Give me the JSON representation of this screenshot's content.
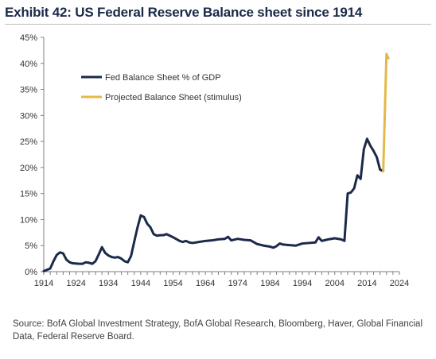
{
  "header": {
    "title": "Exhibit 42: US Federal Reserve Balance sheet since 1914"
  },
  "footer": {
    "source": "Source: BofA Global Investment Strategy, BofA Global Research, Bloomberg, Haver, Global Financial Data, Federal Reserve Board."
  },
  "chart_data": {
    "type": "line",
    "title": "Exhibit 42: US Federal Reserve Balance sheet since 1914",
    "xlabel": "",
    "ylabel": "",
    "xlim": [
      1914,
      2024
    ],
    "ylim": [
      0,
      45
    ],
    "x_ticks": [
      1914,
      1924,
      1934,
      1944,
      1954,
      1964,
      1974,
      1984,
      1994,
      2004,
      2014,
      2024
    ],
    "y_ticks": [
      0,
      5,
      10,
      15,
      20,
      25,
      30,
      35,
      40,
      45
    ],
    "y_tick_labels": [
      "0%",
      "5%",
      "10%",
      "15%",
      "20%",
      "25%",
      "30%",
      "35%",
      "40%",
      "45%"
    ],
    "grid": false,
    "legend": "top-left",
    "series": [
      {
        "name": "Fed Balance Sheet % of GDP",
        "color": "#1b2a4a",
        "points": [
          [
            1914,
            0.1
          ],
          [
            1916,
            0.6
          ],
          [
            1917,
            2.0
          ],
          [
            1918,
            3.2
          ],
          [
            1919,
            3.7
          ],
          [
            1920,
            3.5
          ],
          [
            1921,
            2.3
          ],
          [
            1922,
            1.8
          ],
          [
            1923,
            1.6
          ],
          [
            1925,
            1.5
          ],
          [
            1926,
            1.5
          ],
          [
            1927,
            1.8
          ],
          [
            1928,
            1.7
          ],
          [
            1929,
            1.5
          ],
          [
            1930,
            2.0
          ],
          [
            1931,
            3.3
          ],
          [
            1932,
            4.7
          ],
          [
            1933,
            3.6
          ],
          [
            1934,
            3.1
          ],
          [
            1935,
            2.8
          ],
          [
            1936,
            2.7
          ],
          [
            1937,
            2.8
          ],
          [
            1938,
            2.5
          ],
          [
            1939,
            2.0
          ],
          [
            1940,
            1.8
          ],
          [
            1941,
            3.0
          ],
          [
            1942,
            5.8
          ],
          [
            1943,
            8.5
          ],
          [
            1944,
            10.8
          ],
          [
            1945,
            10.5
          ],
          [
            1946,
            9.2
          ],
          [
            1947,
            8.5
          ],
          [
            1948,
            7.2
          ],
          [
            1949,
            6.9
          ],
          [
            1950,
            7.0
          ],
          [
            1951,
            7.0
          ],
          [
            1952,
            7.2
          ],
          [
            1953,
            6.9
          ],
          [
            1954,
            6.6
          ],
          [
            1956,
            5.9
          ],
          [
            1957,
            5.7
          ],
          [
            1958,
            5.9
          ],
          [
            1959,
            5.6
          ],
          [
            1960,
            5.5
          ],
          [
            1962,
            5.7
          ],
          [
            1964,
            5.9
          ],
          [
            1966,
            6.0
          ],
          [
            1968,
            6.2
          ],
          [
            1970,
            6.3
          ],
          [
            1971,
            6.7
          ],
          [
            1972,
            6.0
          ],
          [
            1974,
            6.3
          ],
          [
            1976,
            6.1
          ],
          [
            1978,
            6.0
          ],
          [
            1980,
            5.3
          ],
          [
            1982,
            5.0
          ],
          [
            1984,
            4.8
          ],
          [
            1985,
            4.6
          ],
          [
            1986,
            4.9
          ],
          [
            1987,
            5.4
          ],
          [
            1988,
            5.2
          ],
          [
            1990,
            5.1
          ],
          [
            1992,
            5.0
          ],
          [
            1994,
            5.4
          ],
          [
            1996,
            5.5
          ],
          [
            1998,
            5.6
          ],
          [
            1999,
            6.6
          ],
          [
            2000,
            5.9
          ],
          [
            2002,
            6.2
          ],
          [
            2004,
            6.4
          ],
          [
            2006,
            6.2
          ],
          [
            2007,
            5.9
          ],
          [
            2008,
            15.0
          ],
          [
            2009,
            15.2
          ],
          [
            2010,
            16.0
          ],
          [
            2011,
            18.5
          ],
          [
            2012,
            17.8
          ],
          [
            2013,
            23.5
          ],
          [
            2014,
            25.5
          ],
          [
            2015,
            24.2
          ],
          [
            2016,
            23.2
          ],
          [
            2017,
            22.0
          ],
          [
            2018,
            19.6
          ],
          [
            2019,
            19.3
          ]
        ]
      },
      {
        "name": "Projected Balance Sheet (stimulus)",
        "color": "#e6b84a",
        "points": [
          [
            2019,
            19.3
          ],
          [
            2020,
            41.8
          ],
          [
            2020.6,
            41.0
          ]
        ]
      }
    ]
  }
}
